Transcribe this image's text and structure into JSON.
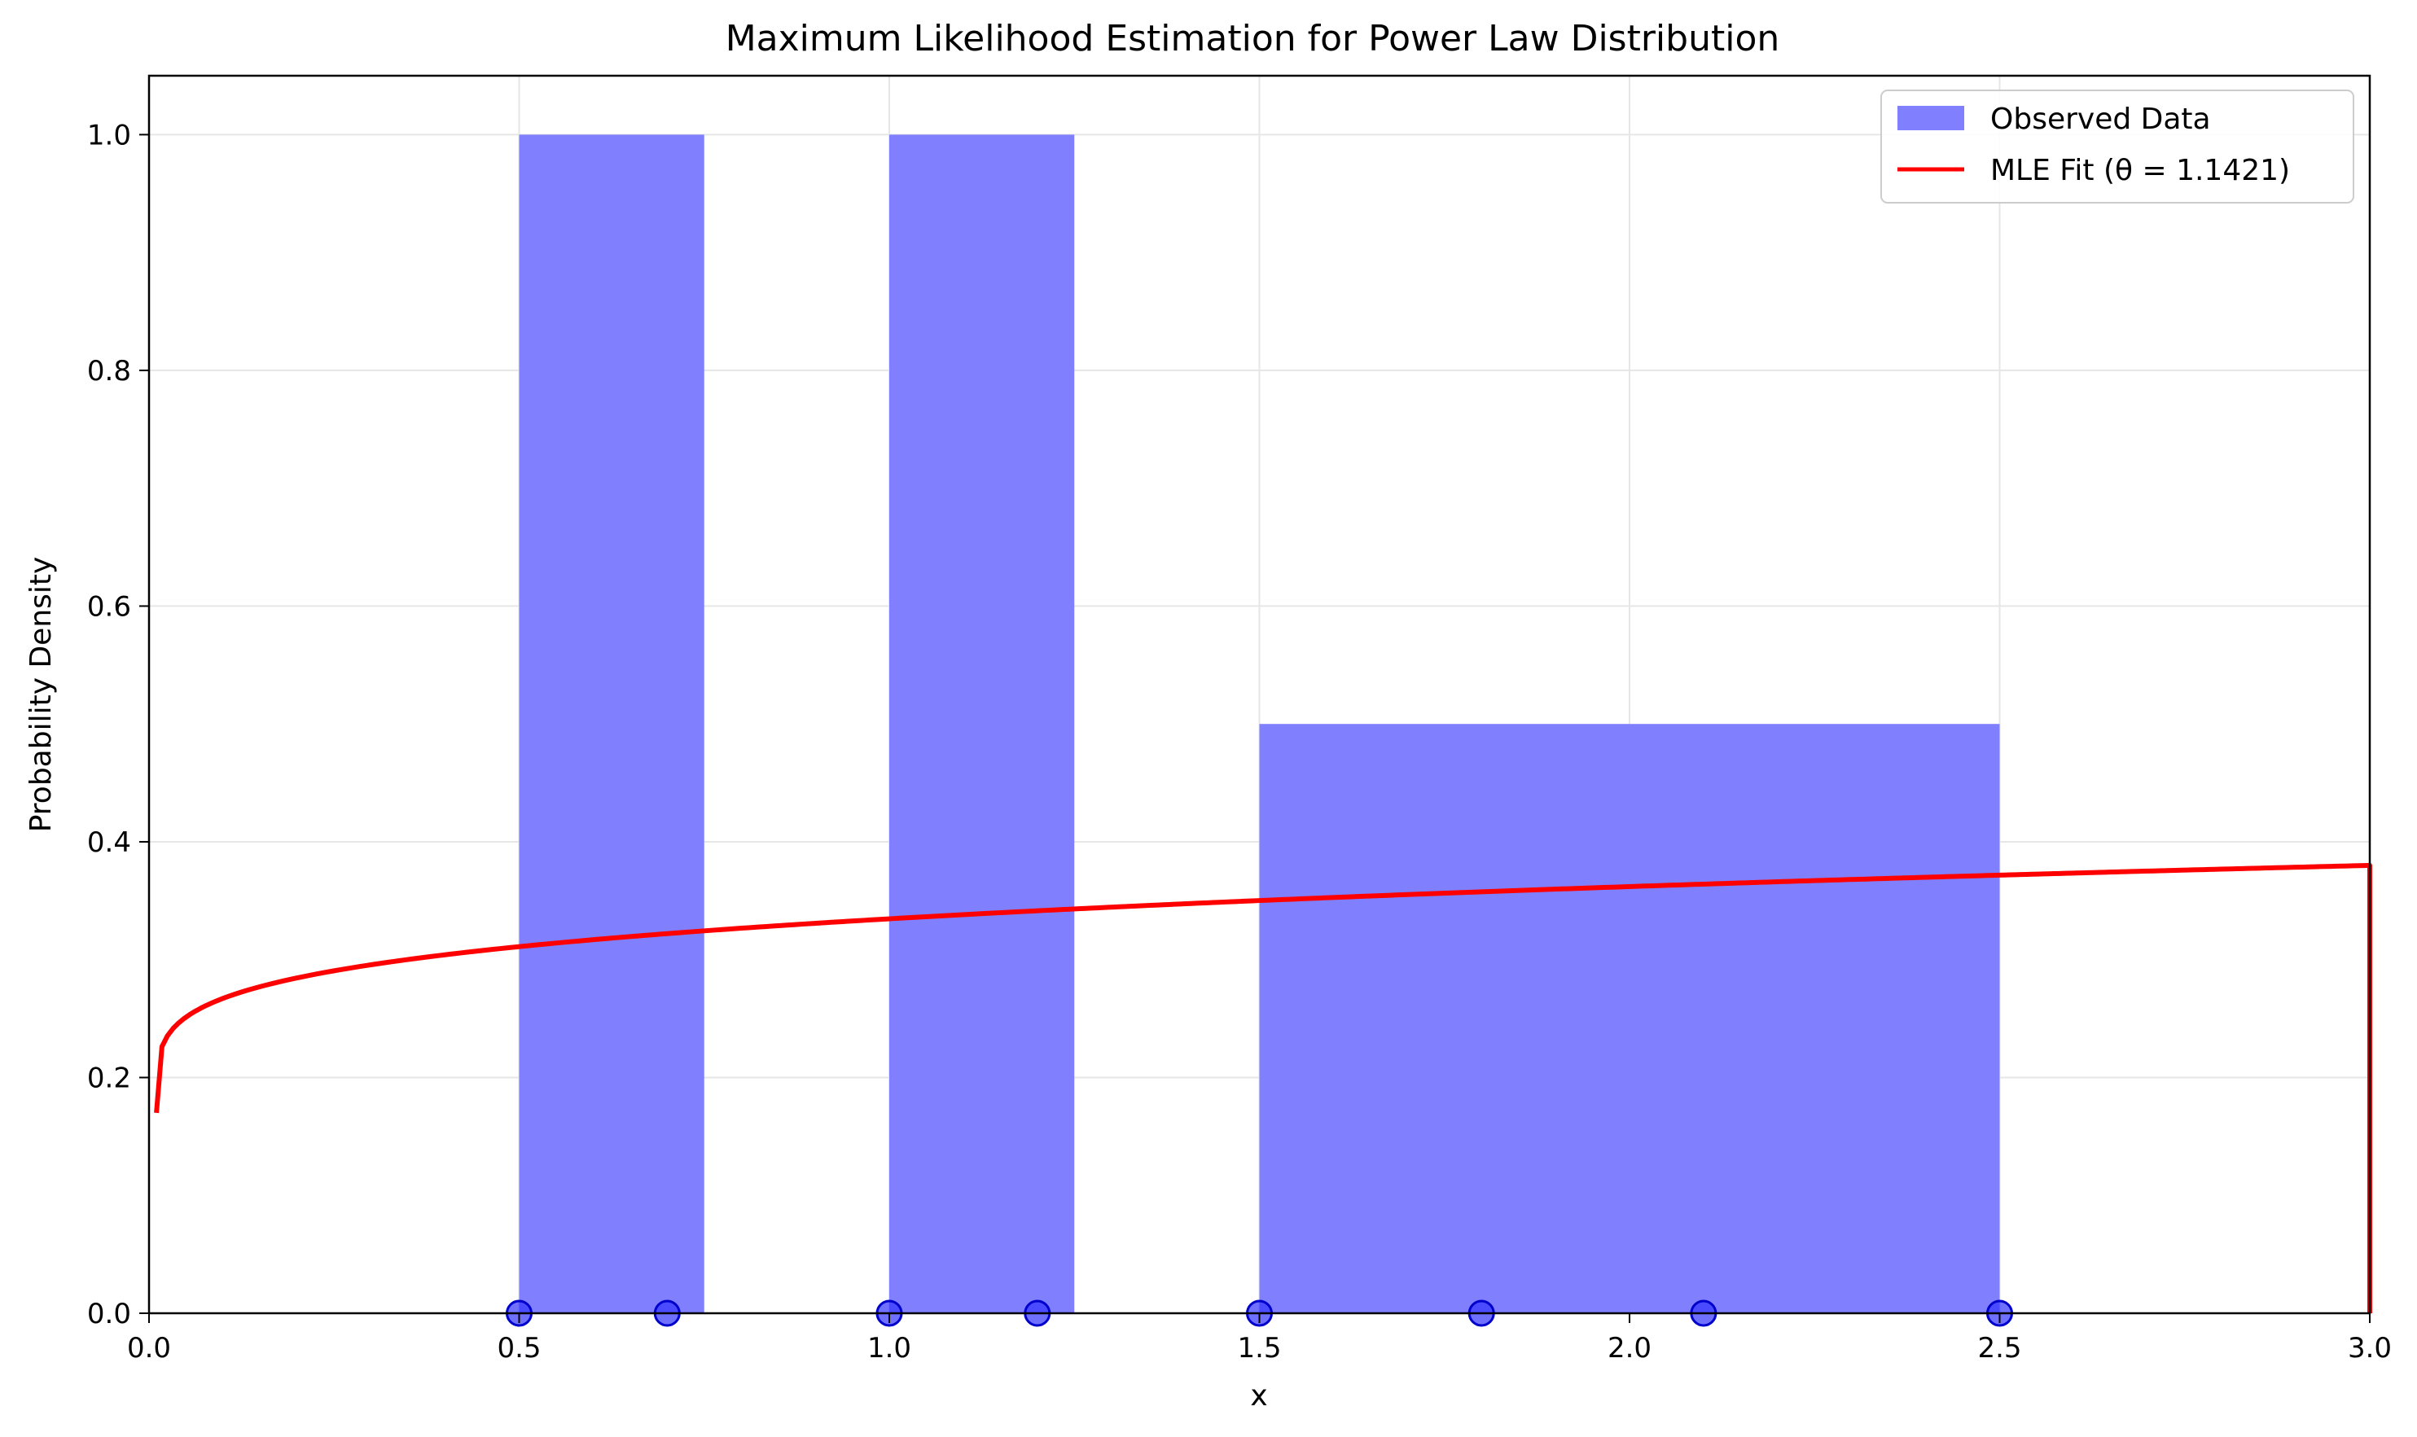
{
  "chart_data": {
    "type": "bar",
    "title": "Maximum Likelihood Estimation for Power Law Distribution",
    "xlabel": "x",
    "ylabel": "Probability Density",
    "xlim": [
      0.0,
      3.0
    ],
    "ylim": [
      0.0,
      1.05
    ],
    "xticks": [
      "0.0",
      "0.5",
      "1.0",
      "1.5",
      "2.0",
      "2.5",
      "3.0"
    ],
    "xtick_values": [
      0.0,
      0.5,
      1.0,
      1.5,
      2.0,
      2.5,
      3.0
    ],
    "yticks": [
      "0.0",
      "0.2",
      "0.4",
      "0.6",
      "0.8",
      "1.0"
    ],
    "ytick_values": [
      0.0,
      0.2,
      0.4,
      0.6,
      0.8,
      1.0
    ],
    "grid": true,
    "legend_position": "top-right",
    "series": [
      {
        "name": "Observed Data",
        "type": "histogram",
        "color": "#8080ff",
        "bins": [
          {
            "x0": 0.5,
            "x1": 0.75,
            "value": 1.0
          },
          {
            "x0": 1.0,
            "x1": 1.25,
            "value": 1.0
          },
          {
            "x0": 1.5,
            "x1": 2.5,
            "value": 0.5
          }
        ]
      },
      {
        "name": "MLE Fit (θ = 1.1421)",
        "type": "line",
        "color": "#ff0000",
        "theta": 1.1421,
        "x_range": [
          0.01,
          3.0
        ],
        "drop_to_zero_at": 3.0
      },
      {
        "name": "",
        "type": "scatter",
        "color": "#3333ff",
        "points_x": [
          0.5,
          0.7,
          1.0,
          1.2,
          1.5,
          1.8,
          2.1,
          2.5
        ],
        "points_y": [
          0,
          0,
          0,
          0,
          0,
          0,
          0,
          0
        ]
      }
    ]
  }
}
